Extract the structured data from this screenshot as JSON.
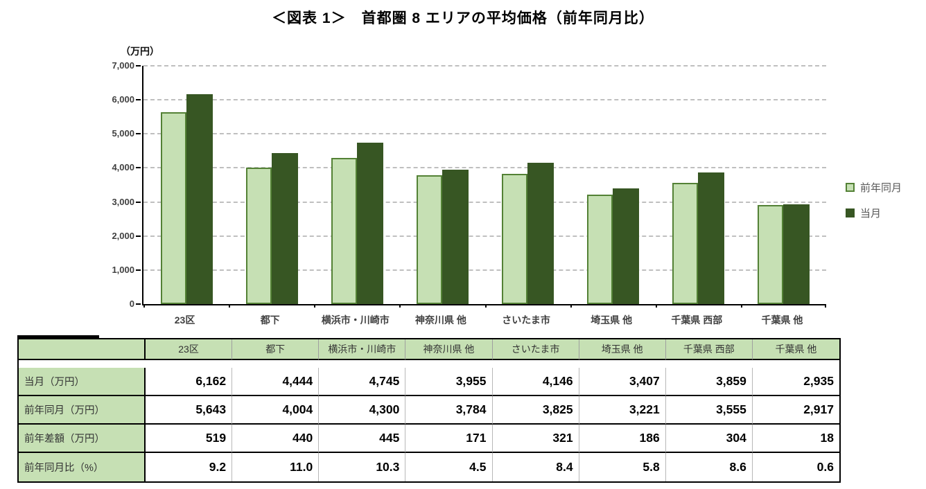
{
  "chart_data": {
    "type": "bar",
    "title": "＜図表 1＞　首都圏 8 エリアの平均価格（前年同月比）",
    "y_axis_title": "（万円）",
    "categories": [
      "23区",
      "都下",
      "横浜市・川崎市",
      "神奈川県 他",
      "さいたま市",
      "埼玉県 他",
      "千葉県 西部",
      "千葉県 他"
    ],
    "series": [
      {
        "name": "前年同月",
        "values": [
          5643,
          4004,
          4300,
          3784,
          3825,
          3221,
          3555,
          2917
        ],
        "fill": "#c6e0b4",
        "border": "#538135"
      },
      {
        "name": "当月",
        "values": [
          6162,
          4444,
          4745,
          3955,
          4146,
          3407,
          3859,
          2935
        ],
        "fill": "#375623",
        "border": "#375623"
      }
    ],
    "ylim": [
      0,
      7000
    ],
    "ytick_step": 1000,
    "ytick_labels": [
      "0",
      "1,000",
      "2,000",
      "3,000",
      "4,000",
      "5,000",
      "6,000",
      "7,000"
    ],
    "grid": "horizontal-dashed",
    "legend_position": "right",
    "colors": {
      "gridline": "#bfbfbf",
      "axis": "#000000",
      "tick_label": "#404040",
      "legend_text": "#595959",
      "table_header_fill": "#c6e0b4"
    }
  },
  "table": {
    "corner_label": "",
    "columns": [
      "23区",
      "都下",
      "横浜市・川崎市",
      "神奈川県 他",
      "さいたま市",
      "埼玉県 他",
      "千葉県 西部",
      "千葉県 他"
    ],
    "rows": [
      {
        "label": "当月（万円）",
        "values": [
          "6,162",
          "4,444",
          "4,745",
          "3,955",
          "4,146",
          "3,407",
          "3,859",
          "2,935"
        ]
      },
      {
        "label": "前年同月（万円）",
        "values": [
          "5,643",
          "4,004",
          "4,300",
          "3,784",
          "3,825",
          "3,221",
          "3,555",
          "2,917"
        ]
      },
      {
        "label": "前年差額（万円）",
        "values": [
          "519",
          "440",
          "445",
          "171",
          "321",
          "186",
          "304",
          "18"
        ]
      },
      {
        "label": "前年同月比（%）",
        "values": [
          "9.2",
          "11.0",
          "10.3",
          "4.5",
          "8.4",
          "5.8",
          "8.6",
          "0.6"
        ]
      }
    ]
  }
}
